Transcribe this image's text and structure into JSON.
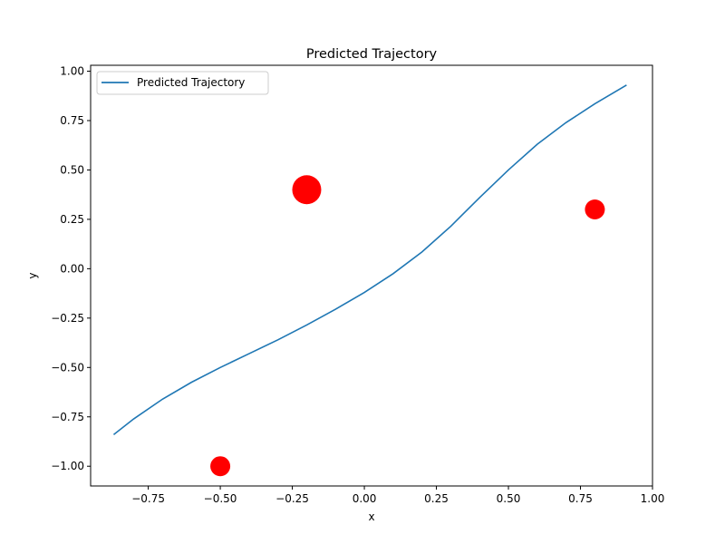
{
  "chart_data": {
    "type": "line",
    "title": "Predicted Trajectory",
    "xlabel": "x",
    "ylabel": "y",
    "xlim": [
      -0.95,
      1.0
    ],
    "ylim": [
      -1.1,
      1.03
    ],
    "xticks": [
      "−0.75",
      "−0.50",
      "−0.25",
      "0.00",
      "0.25",
      "0.50",
      "0.75",
      "1.00"
    ],
    "xtick_values": [
      -0.75,
      -0.5,
      -0.25,
      0.0,
      0.25,
      0.5,
      0.75,
      1.0
    ],
    "yticks": [
      "−1.00",
      "−0.75",
      "−0.50",
      "−0.25",
      "0.00",
      "0.25",
      "0.50",
      "0.75",
      "1.00"
    ],
    "ytick_values": [
      -1.0,
      -0.75,
      -0.5,
      -0.25,
      0.0,
      0.25,
      0.5,
      0.75,
      1.0
    ],
    "grid": false,
    "legend_position": "top-left",
    "series": [
      {
        "name": "Predicted Trajectory",
        "color": "#1f77b4",
        "x": [
          -0.87,
          -0.8,
          -0.7,
          -0.6,
          -0.5,
          -0.4,
          -0.3,
          -0.2,
          -0.1,
          0.0,
          0.1,
          0.2,
          0.3,
          0.4,
          0.5,
          0.6,
          0.7,
          0.8,
          0.91
        ],
        "y": [
          -0.84,
          -0.76,
          -0.66,
          -0.575,
          -0.5,
          -0.43,
          -0.36,
          -0.285,
          -0.205,
          -0.12,
          -0.025,
          0.085,
          0.215,
          0.36,
          0.5,
          0.63,
          0.74,
          0.835,
          0.93
        ]
      }
    ],
    "obstacles": {
      "color": "#ff0000",
      "points": [
        {
          "x": -0.2,
          "y": 0.4,
          "size": "large"
        },
        {
          "x": 0.8,
          "y": 0.3,
          "size": "small"
        },
        {
          "x": -0.5,
          "y": -1.0,
          "size": "small"
        }
      ]
    }
  }
}
